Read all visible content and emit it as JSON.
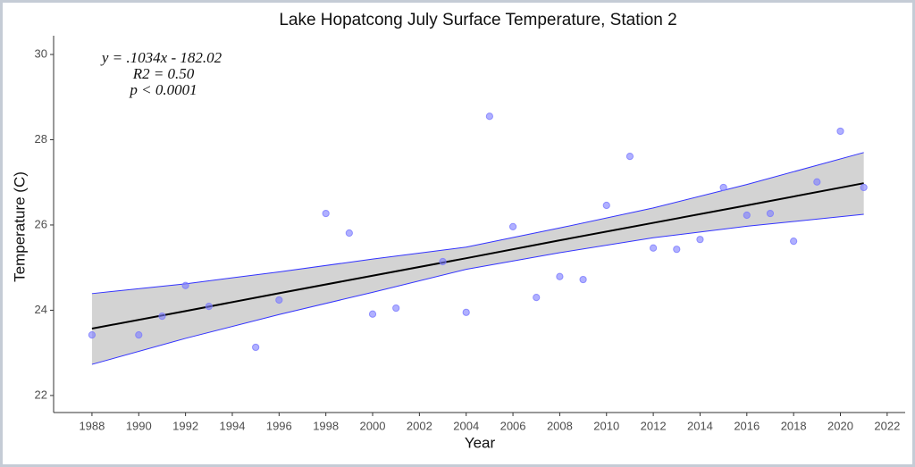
{
  "chart_data": {
    "type": "scatter",
    "title": "Lake Hopatcong July Surface Temperature, Station 2",
    "x_label": "Year",
    "y_label": "Temperature (C)",
    "x": [
      1988,
      1990,
      1991,
      1992,
      1993,
      1995,
      1996,
      1998,
      1999,
      2000,
      2001,
      2003,
      2004,
      2005,
      2006,
      2007,
      2008,
      2009,
      2010,
      2011,
      2012,
      2013,
      2014,
      2015,
      2016,
      2017,
      2018,
      2019,
      2020,
      2021
    ],
    "values": [
      23.42,
      23.42,
      23.86,
      24.58,
      24.09,
      23.13,
      24.24,
      26.27,
      25.81,
      23.91,
      24.05,
      25.14,
      23.95,
      28.55,
      25.96,
      24.3,
      24.79,
      24.72,
      26.46,
      27.61,
      25.46,
      25.43,
      25.66,
      26.88,
      26.23,
      26.27,
      25.62,
      27.01,
      28.2,
      26.88
    ],
    "color": "#7b7bff",
    "fit": {
      "x": [
        1988,
        1992,
        1996,
        2000,
        2004,
        2008,
        2012,
        2016,
        2021
      ],
      "values": [
        23.57,
        23.98,
        24.4,
        24.81,
        25.22,
        25.64,
        26.05,
        26.46,
        26.98
      ],
      "upper": [
        24.39,
        24.62,
        24.9,
        25.2,
        25.48,
        25.93,
        26.4,
        26.95,
        27.7
      ],
      "lower": [
        22.73,
        23.34,
        23.9,
        24.42,
        24.96,
        25.35,
        25.7,
        25.97,
        26.25
      ],
      "line_color": "#000000",
      "band_color": "#d3d3d3",
      "bound_color": "#3333ff"
    },
    "annotations": [
      "y = .1034x - 182.02",
      "R2 = 0.50",
      "p < 0.0001"
    ],
    "xlim": [
      1986.36,
      2022.77
    ],
    "ylim": [
      21.6,
      30.44
    ],
    "xticks": [
      1988,
      1990,
      1992,
      1994,
      1996,
      1998,
      2000,
      2002,
      2004,
      2006,
      2008,
      2010,
      2012,
      2014,
      2016,
      2018,
      2020,
      2022
    ],
    "yticks": [
      22,
      24,
      26,
      28,
      30
    ],
    "grid": false
  }
}
